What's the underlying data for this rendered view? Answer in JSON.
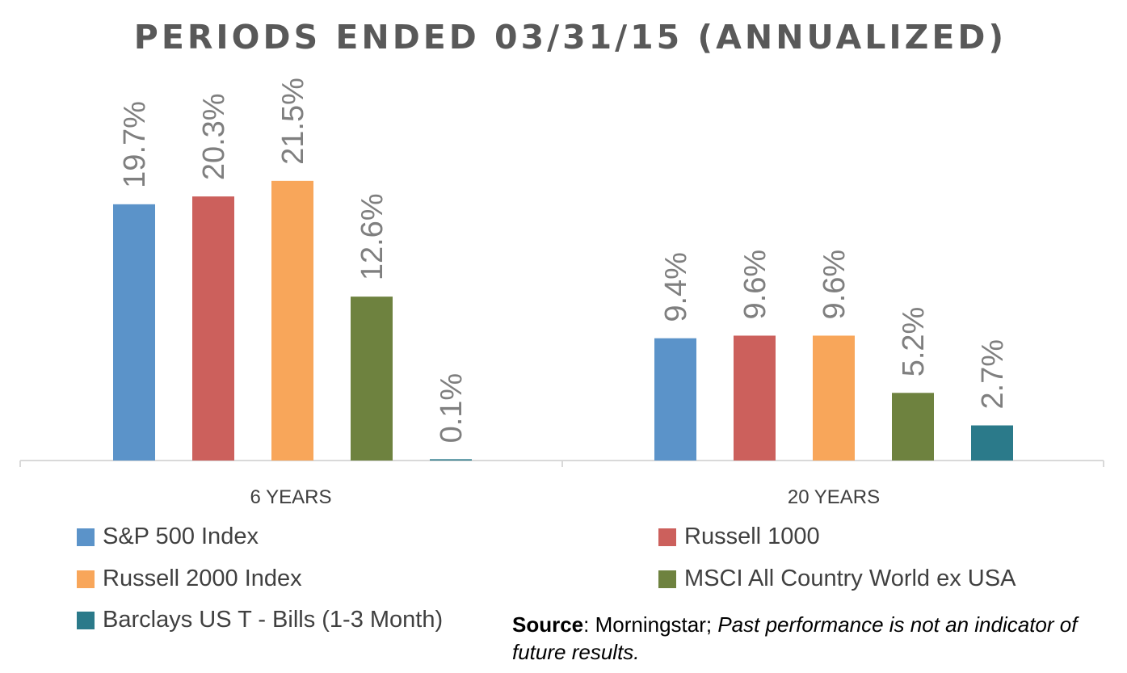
{
  "chart_data": {
    "type": "bar",
    "title": "PERIODS ENDED 03/31/15 (ANNUALIZED)",
    "categories": [
      "6 YEARS",
      "20 YEARS"
    ],
    "series": [
      {
        "name": "S&P 500 Index",
        "color": "#5B93C9",
        "values": [
          19.7,
          9.4
        ],
        "labels": [
          "19.7%",
          "9.4%"
        ]
      },
      {
        "name": "Russell 1000",
        "color": "#CC605C",
        "values": [
          20.3,
          9.6
        ],
        "labels": [
          "20.3%",
          "9.6%"
        ]
      },
      {
        "name": "Russell 2000 Index",
        "color": "#F8A65A",
        "values": [
          21.5,
          9.6
        ],
        "labels": [
          "21.5%",
          "9.6%"
        ]
      },
      {
        "name": "MSCI All Country World ex USA",
        "color": "#6E823F",
        "values": [
          12.6,
          5.2
        ],
        "labels": [
          "12.6%",
          "5.2%"
        ]
      },
      {
        "name": "Barclays US T - Bills (1-3 Month)",
        "color": "#2B7A8A",
        "values": [
          0.1,
          2.7
        ],
        "labels": [
          "0.1%",
          "2.7%"
        ]
      }
    ],
    "ylim": [
      0,
      22
    ],
    "grid": false,
    "legend_position": "bottom"
  },
  "source": {
    "label": "Source",
    "text": ": Morningstar; ",
    "italic": "Past performance is not an indicator of future results."
  }
}
